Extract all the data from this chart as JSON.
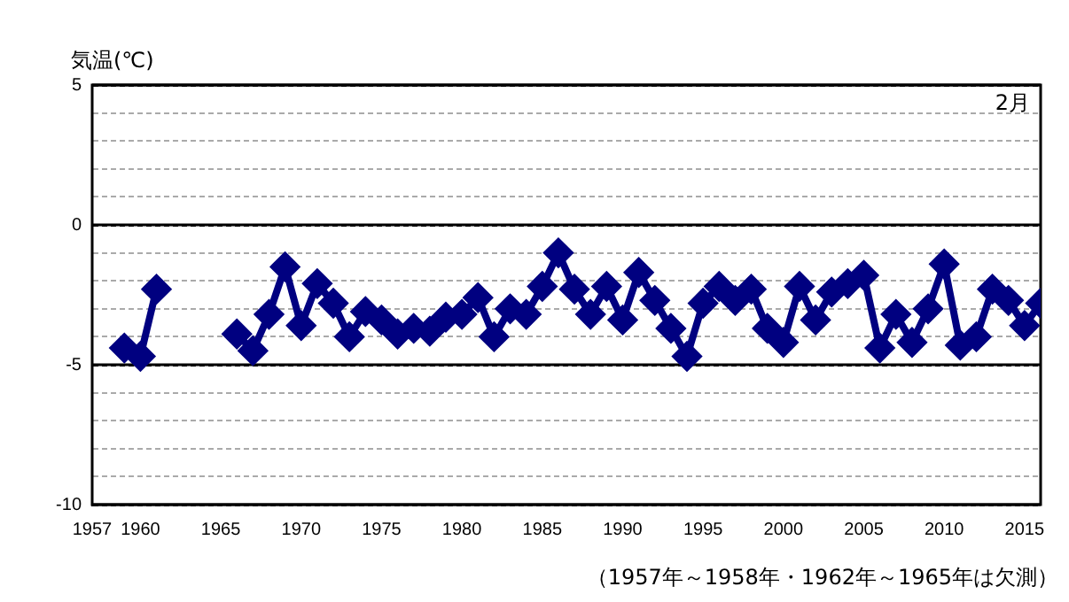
{
  "chart_data": {
    "type": "line",
    "ylabel": "気温(℃)",
    "annotations": [
      "2月",
      "（1957年～1958年・1962年～1965年は欠測）"
    ],
    "x": [
      1959,
      1960,
      1961,
      1962,
      1963,
      1964,
      1965,
      1966,
      1967,
      1968,
      1969,
      1970,
      1971,
      1972,
      1973,
      1974,
      1975,
      1976,
      1977,
      1978,
      1979,
      1980,
      1981,
      1982,
      1983,
      1984,
      1985,
      1986,
      1987,
      1988,
      1989,
      1990,
      1991,
      1992,
      1993,
      1994,
      1995,
      1996,
      1997,
      1998,
      1999,
      2000,
      2001,
      2002,
      2003,
      2004,
      2005,
      2006,
      2007,
      2008,
      2009,
      2010,
      2011,
      2012,
      2013,
      2014,
      2015,
      2016
    ],
    "series": [
      {
        "color": "#000080",
        "values": [
          -4.4,
          -4.7,
          -2.3,
          null,
          null,
          null,
          null,
          -3.9,
          -4.5,
          -3.2,
          -1.5,
          -3.6,
          -2.1,
          -2.8,
          -4.0,
          -3.1,
          -3.4,
          -3.9,
          -3.7,
          -3.8,
          -3.3,
          -3.2,
          -2.6,
          -4.0,
          -3.0,
          -3.2,
          -2.2,
          -1.0,
          -2.3,
          -3.2,
          -2.2,
          -3.4,
          -1.7,
          -2.7,
          -3.7,
          -4.7,
          -2.8,
          -2.2,
          -2.7,
          -2.3,
          -3.7,
          -4.2,
          -2.2,
          -3.4,
          -2.4,
          -2.1,
          -1.8,
          -4.4,
          -3.2,
          -4.2,
          -3.0,
          -1.4,
          -4.3,
          -4.0,
          -2.3,
          -2.7,
          -3.6,
          -2.8
        ]
      }
    ],
    "xlim": [
      1957,
      2016
    ],
    "xticks": [
      1957,
      1960,
      1965,
      1970,
      1975,
      1980,
      1985,
      1990,
      1995,
      2000,
      2005,
      2010,
      2015
    ],
    "ylim": [
      -10,
      5
    ],
    "yticks": [
      -10,
      {
        "value": -9,
        "label": null
      },
      {
        "value": -8,
        "label": null
      },
      {
        "value": -7,
        "label": null
      },
      {
        "value": -6,
        "label": null
      },
      -5,
      {
        "value": -4,
        "label": null
      },
      {
        "value": -3,
        "label": null
      },
      {
        "value": -2,
        "label": null
      },
      {
        "value": -1,
        "label": null
      },
      0,
      {
        "value": 1,
        "label": null
      },
      {
        "value": 2,
        "label": null
      },
      {
        "value": 3,
        "label": null
      },
      {
        "value": 4,
        "label": null
      },
      5
    ],
    "grid": "y",
    "marker": "diamond",
    "line_style": "solid",
    "legend": false
  }
}
